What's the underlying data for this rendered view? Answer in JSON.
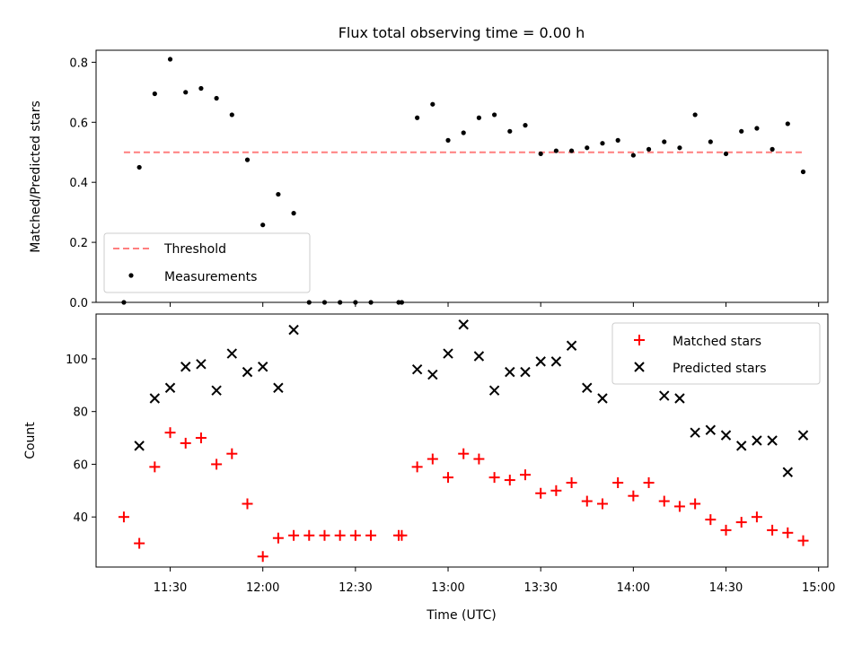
{
  "chart_data": [
    {
      "type": "scatter",
      "title": "Flux total observing time = 0.00 h",
      "xlabel": "",
      "ylabel": "Matched/Predicted stars",
      "xlim": [
        "11:06",
        "15:03"
      ],
      "ylim": [
        0.0,
        0.84
      ],
      "yticks": [
        0.0,
        0.2,
        0.4,
        0.6,
        0.8
      ],
      "grid": false,
      "legend_position": "lower-left",
      "threshold": {
        "name": "Threshold",
        "value": 0.5,
        "x_start": "11:15",
        "x_end": "14:55",
        "color": "#ff7f7f",
        "style": "dashed"
      },
      "series": [
        {
          "name": "Measurements",
          "marker": "dot",
          "color": "#000000",
          "points": [
            [
              "11:15",
              0.0
            ],
            [
              "11:20",
              0.45
            ],
            [
              "11:25",
              0.695
            ],
            [
              "11:30",
              0.81
            ],
            [
              "11:35",
              0.7
            ],
            [
              "11:40",
              0.713
            ],
            [
              "11:45",
              0.68
            ],
            [
              "11:50",
              0.625
            ],
            [
              "11:55",
              0.475
            ],
            [
              "12:00",
              0.258
            ],
            [
              "12:05",
              0.36
            ],
            [
              "12:10",
              0.297
            ],
            [
              "12:15",
              0.0
            ],
            [
              "12:20",
              0.0
            ],
            [
              "12:25",
              0.0
            ],
            [
              "12:30",
              0.0
            ],
            [
              "12:35",
              0.0
            ],
            [
              "12:44",
              0.0
            ],
            [
              "12:45",
              0.0
            ],
            [
              "12:50",
              0.615
            ],
            [
              "12:55",
              0.66
            ],
            [
              "13:00",
              0.54
            ],
            [
              "13:05",
              0.565
            ],
            [
              "13:10",
              0.615
            ],
            [
              "13:15",
              0.625
            ],
            [
              "13:20",
              0.57
            ],
            [
              "13:25",
              0.59
            ],
            [
              "13:30",
              0.495
            ],
            [
              "13:35",
              0.505
            ],
            [
              "13:40",
              0.505
            ],
            [
              "13:45",
              0.515
            ],
            [
              "13:50",
              0.53
            ],
            [
              "13:55",
              0.54
            ],
            [
              "14:00",
              0.49
            ],
            [
              "14:05",
              0.51
            ],
            [
              "14:10",
              0.535
            ],
            [
              "14:15",
              0.515
            ],
            [
              "14:20",
              0.625
            ],
            [
              "14:25",
              0.535
            ],
            [
              "14:30",
              0.495
            ],
            [
              "14:35",
              0.57
            ],
            [
              "14:40",
              0.58
            ],
            [
              "14:45",
              0.51
            ],
            [
              "14:50",
              0.595
            ],
            [
              "14:55",
              0.435
            ]
          ]
        }
      ]
    },
    {
      "type": "scatter",
      "title": "",
      "xlabel": "Time (UTC)",
      "ylabel": "Count",
      "xlim": [
        "11:06",
        "15:03"
      ],
      "ylim": [
        21,
        117
      ],
      "yticks": [
        40,
        60,
        80,
        100
      ],
      "xticks": [
        "11:30",
        "12:00",
        "12:30",
        "13:00",
        "13:30",
        "14:00",
        "14:30",
        "15:00"
      ],
      "grid": false,
      "legend_position": "upper-right",
      "series": [
        {
          "name": "Matched stars",
          "marker": "plus",
          "color": "#ff0000",
          "points": [
            [
              "11:15",
              40
            ],
            [
              "11:20",
              30
            ],
            [
              "11:25",
              59
            ],
            [
              "11:30",
              72
            ],
            [
              "11:35",
              68
            ],
            [
              "11:40",
              70
            ],
            [
              "11:45",
              60
            ],
            [
              "11:50",
              64
            ],
            [
              "11:55",
              45
            ],
            [
              "12:00",
              25
            ],
            [
              "12:05",
              32
            ],
            [
              "12:10",
              33
            ],
            [
              "12:15",
              33
            ],
            [
              "12:20",
              33
            ],
            [
              "12:25",
              33
            ],
            [
              "12:30",
              33
            ],
            [
              "12:35",
              33
            ],
            [
              "12:44",
              33
            ],
            [
              "12:45",
              33
            ],
            [
              "12:50",
              59
            ],
            [
              "12:55",
              62
            ],
            [
              "13:00",
              55
            ],
            [
              "13:05",
              64
            ],
            [
              "13:10",
              62
            ],
            [
              "13:15",
              55
            ],
            [
              "13:20",
              54
            ],
            [
              "13:25",
              56
            ],
            [
              "13:30",
              49
            ],
            [
              "13:35",
              50
            ],
            [
              "13:40",
              53
            ],
            [
              "13:45",
              46
            ],
            [
              "13:50",
              45
            ],
            [
              "13:55",
              53
            ],
            [
              "14:00",
              48
            ],
            [
              "14:05",
              53
            ],
            [
              "14:10",
              46
            ],
            [
              "14:15",
              44
            ],
            [
              "14:20",
              45
            ],
            [
              "14:25",
              39
            ],
            [
              "14:30",
              35
            ],
            [
              "14:35",
              38
            ],
            [
              "14:40",
              40
            ],
            [
              "14:45",
              35
            ],
            [
              "14:50",
              34
            ],
            [
              "14:55",
              31
            ]
          ]
        },
        {
          "name": "Predicted stars",
          "marker": "x",
          "color": "#000000",
          "points": [
            [
              "11:20",
              67
            ],
            [
              "11:25",
              85
            ],
            [
              "11:30",
              89
            ],
            [
              "11:35",
              97
            ],
            [
              "11:40",
              98
            ],
            [
              "11:45",
              88
            ],
            [
              "11:50",
              102
            ],
            [
              "11:55",
              95
            ],
            [
              "12:00",
              97
            ],
            [
              "12:05",
              89
            ],
            [
              "12:10",
              111
            ],
            [
              "12:50",
              96
            ],
            [
              "12:55",
              94
            ],
            [
              "13:00",
              102
            ],
            [
              "13:05",
              113
            ],
            [
              "13:10",
              101
            ],
            [
              "13:15",
              88
            ],
            [
              "13:20",
              95
            ],
            [
              "13:25",
              95
            ],
            [
              "13:30",
              99
            ],
            [
              "13:35",
              99
            ],
            [
              "13:40",
              105
            ],
            [
              "13:45",
              89
            ],
            [
              "13:50",
              85
            ],
            [
              "13:55",
              98
            ],
            [
              "14:00",
              98
            ],
            [
              "14:05",
              97
            ],
            [
              "14:10",
              86
            ],
            [
              "14:15",
              85
            ],
            [
              "14:20",
              72
            ],
            [
              "14:25",
              73
            ],
            [
              "14:30",
              71
            ],
            [
              "14:35",
              67
            ],
            [
              "14:40",
              69
            ],
            [
              "14:45",
              69
            ],
            [
              "14:50",
              57
            ],
            [
              "14:55",
              71
            ]
          ]
        }
      ]
    }
  ],
  "colors": {
    "axes": "#000000",
    "background": "#ffffff",
    "threshold": "#ff7f7f",
    "matched": "#ff0000",
    "predicted": "#000000"
  }
}
